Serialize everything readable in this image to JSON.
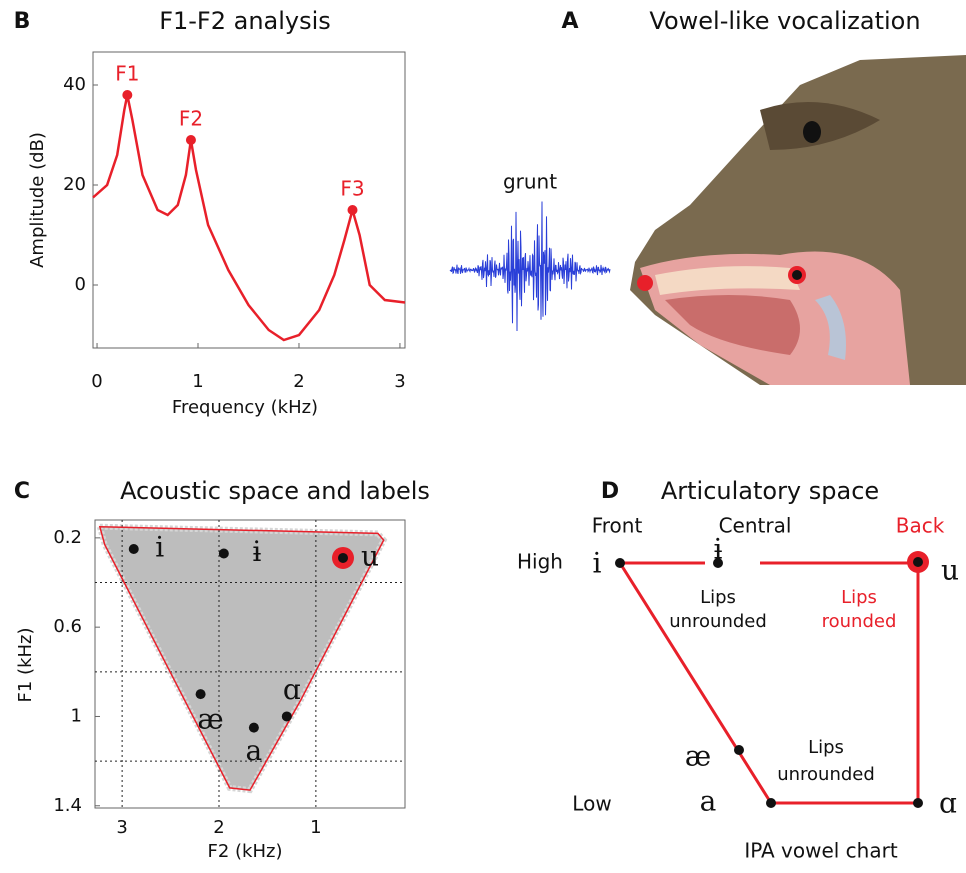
{
  "panels": {
    "a": {
      "letter": "A",
      "title": "Vowel-like vocalization",
      "sound": "grunt"
    },
    "b": {
      "letter": "B",
      "title": "F1-F2 analysis",
      "xlabel": "Frequency  (kHz)",
      "ylabel": "Amplitude  (dB)",
      "xlim": [
        -0.04,
        3.05
      ],
      "ylim": [
        -12.6,
        46.6
      ],
      "xticks": [
        0,
        1,
        2,
        3
      ],
      "yticks": [
        0,
        20,
        40
      ],
      "color": "#e8202a",
      "curve": {
        "x": [
          -0.04,
          0.1,
          0.2,
          0.27,
          0.3,
          0.35,
          0.45,
          0.6,
          0.7,
          0.8,
          0.88,
          0.93,
          0.98,
          1.1,
          1.3,
          1.5,
          1.7,
          1.85,
          2.0,
          2.2,
          2.35,
          2.45,
          2.53,
          2.6,
          2.7,
          2.85,
          3.05
        ],
        "y": [
          17.5,
          20,
          26,
          35,
          38,
          33,
          22,
          15,
          14,
          16,
          22,
          29,
          23,
          12,
          3,
          -4,
          -9,
          -11,
          -10,
          -5,
          2,
          9,
          15,
          10,
          0,
          -3,
          -3.5
        ]
      },
      "peaks": [
        {
          "label": "F1",
          "x": 0.3,
          "y": 38
        },
        {
          "label": "F2",
          "x": 0.93,
          "y": 29
        },
        {
          "label": "F3",
          "x": 2.53,
          "y": 15
        }
      ]
    },
    "c": {
      "letter": "C",
      "title": "Acoustic space and labels",
      "xlabel": "F2  (kHz)",
      "ylabel": "F1  (kHz)",
      "xlim": [
        3.28,
        0.08
      ],
      "ylim": [
        1.41,
        0.12
      ],
      "xticks": [
        3,
        2,
        1
      ],
      "yticks": [
        0.2,
        0.6,
        1,
        1.4
      ],
      "minor_grid_f1": [
        0.4,
        0.8,
        1.2
      ],
      "outline_color": "#e8202a",
      "outline": {
        "f2": [
          3.23,
          0.36,
          0.3,
          1.16,
          1.68,
          1.89,
          3.18
        ],
        "f1": [
          0.15,
          0.18,
          0.21,
          0.93,
          1.33,
          1.32,
          0.23
        ]
      },
      "vowels": [
        {
          "symbol": "i",
          "f2": 2.88,
          "f1": 0.25
        },
        {
          "symbol": "ɨ",
          "f2": 1.95,
          "f1": 0.27
        },
        {
          "symbol": "u",
          "f2": 0.72,
          "f1": 0.29,
          "ring_color": "#e8202a"
        },
        {
          "symbol": "æ",
          "f2": 2.19,
          "f1": 0.9
        },
        {
          "symbol": "ɑ",
          "f2": 1.3,
          "f1": 1.0
        },
        {
          "symbol": "a",
          "f2": 1.64,
          "f1": 1.05
        }
      ]
    },
    "d": {
      "letter": "D",
      "title": "Articulatory space",
      "columns": [
        "Front",
        "Central",
        "Back"
      ],
      "rows": [
        "High",
        "Low"
      ],
      "vowels": [
        "i",
        "ɨ",
        "u",
        "æ",
        "a",
        "ɑ"
      ],
      "notes": [
        [
          "Lips",
          "unrounded"
        ],
        [
          "Lips",
          "rounded"
        ],
        [
          "Lips",
          "unrounded"
        ]
      ],
      "caption": "IPA vowel chart"
    }
  }
}
